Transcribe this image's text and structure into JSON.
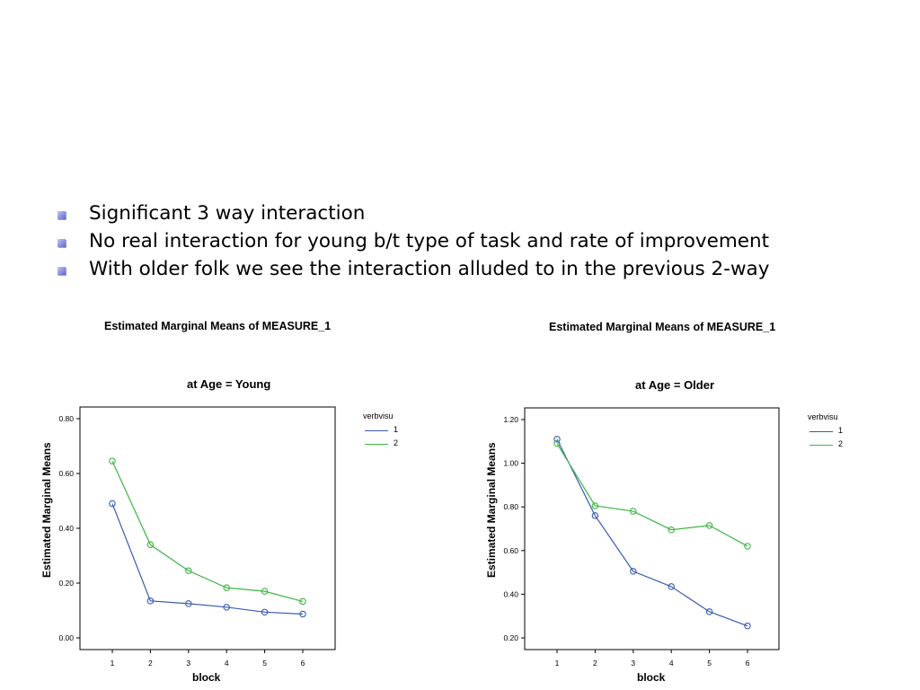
{
  "bullets": [
    "Significant 3 way interaction",
    "No real interaction for young b/t type of task and rate of improvement",
    "With older folk we see the interaction alluded to in the previous 2-way"
  ],
  "colors": {
    "series_1": "#3a5bb0",
    "series_2": "#3fb544",
    "bullet": "#8e92dd"
  },
  "chart_data": [
    {
      "type": "line",
      "title": "Estimated Marginal Means of MEASURE_1",
      "subtitle": "at Age = Young",
      "xlabel": "block",
      "ylabel": "Estimated Marginal Means",
      "legend_title": "verbvisu",
      "legend_position": "top-right",
      "grid": false,
      "x": [
        1,
        2,
        3,
        4,
        5,
        6
      ],
      "x_ticks": [
        "1",
        "2",
        "3",
        "4",
        "5",
        "6"
      ],
      "y_ticks": [
        "0.00",
        "0.20",
        "0.40",
        "0.60",
        "0.80"
      ],
      "ylim": [
        0.0,
        0.8
      ],
      "series": [
        {
          "name": "1",
          "values": [
            0.49,
            0.135,
            0.125,
            0.112,
            0.094,
            0.087
          ]
        },
        {
          "name": "2",
          "values": [
            0.645,
            0.34,
            0.245,
            0.183,
            0.17,
            0.133
          ]
        }
      ]
    },
    {
      "type": "line",
      "title": "Estimated Marginal Means of MEASURE_1",
      "subtitle": "at Age = Older",
      "xlabel": "block",
      "ylabel": "Estimated Marginal Means",
      "legend_title": "verbvisu",
      "legend_position": "top-right",
      "grid": false,
      "x": [
        1,
        2,
        3,
        4,
        5,
        6
      ],
      "x_ticks": [
        "1",
        "2",
        "3",
        "4",
        "5",
        "6"
      ],
      "y_ticks": [
        "0.20",
        "0.40",
        "0.60",
        "0.80",
        "1.00",
        "1.20"
      ],
      "ylim": [
        0.2,
        1.2
      ],
      "series": [
        {
          "name": "1",
          "values": [
            1.11,
            0.76,
            0.505,
            0.435,
            0.32,
            0.255
          ]
        },
        {
          "name": "2",
          "values": [
            1.09,
            0.805,
            0.78,
            0.695,
            0.715,
            0.62
          ]
        }
      ]
    }
  ]
}
